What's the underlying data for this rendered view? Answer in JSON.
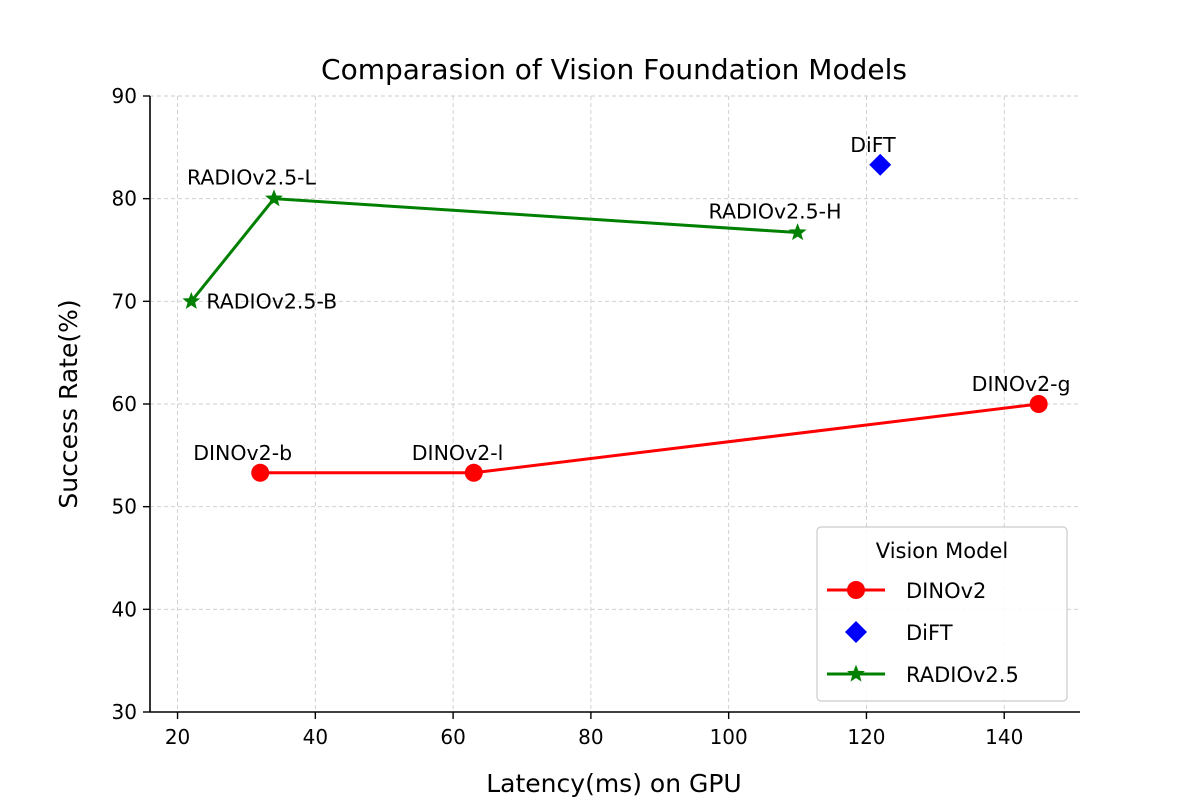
{
  "chart_data": {
    "type": "line",
    "title": "Comparasion of Vision Foundation Models",
    "xlabel": "Latency(ms) on GPU",
    "ylabel": "Success Rate(%)",
    "xlim": [
      16,
      151
    ],
    "ylim": [
      30,
      90
    ],
    "xticks": [
      20,
      40,
      60,
      80,
      100,
      120,
      140
    ],
    "yticks": [
      30,
      40,
      50,
      60,
      70,
      80,
      90
    ],
    "grid": true,
    "legend": {
      "title": "Vision Model",
      "position": "lower-right"
    },
    "series": [
      {
        "name": "DINOv2",
        "color": "#ff0000",
        "marker": "circle",
        "connected": true,
        "points": [
          {
            "label": "DINOv2-b",
            "x": 32,
            "y": 53.3
          },
          {
            "label": "DINOv2-l",
            "x": 63,
            "y": 53.3
          },
          {
            "label": "DINOv2-g",
            "x": 145,
            "y": 60
          }
        ]
      },
      {
        "name": "DiFT",
        "color": "#0000ff",
        "marker": "diamond",
        "connected": false,
        "points": [
          {
            "label": "DiFT",
            "x": 122,
            "y": 83.3
          }
        ]
      },
      {
        "name": "RADIOv2.5",
        "color": "#008000",
        "marker": "star",
        "connected": true,
        "points": [
          {
            "label": "RADIOv2.5-B",
            "x": 22,
            "y": 70
          },
          {
            "label": "RADIOv2.5-L",
            "x": 34,
            "y": 80
          },
          {
            "label": "RADIOv2.5-H",
            "x": 110,
            "y": 76.7
          }
        ]
      }
    ]
  }
}
